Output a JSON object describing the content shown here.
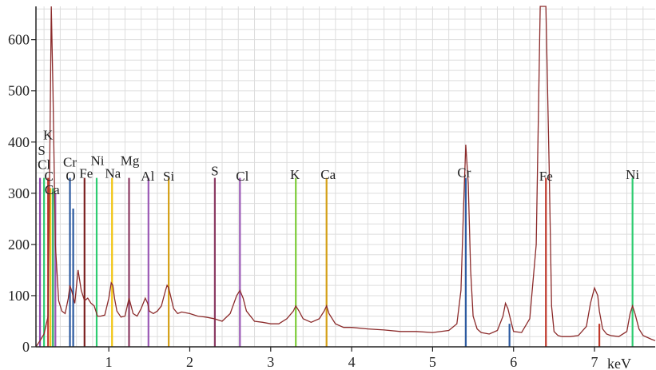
{
  "chart_data": {
    "type": "line",
    "title": "",
    "xlabel": "keV",
    "ylabel": "",
    "xlim": [
      0.1,
      7.75
    ],
    "ylim": [
      0,
      665
    ],
    "grid": true,
    "x_ticks": [
      1,
      2,
      3,
      4,
      5,
      6,
      7
    ],
    "x_tick_labels": [
      "1",
      "2",
      "3",
      "4",
      "5",
      "6",
      "7"
    ],
    "y_ticks": [
      0,
      100,
      200,
      300,
      400,
      500,
      600
    ],
    "y_tick_labels": [
      "0",
      "100",
      "200",
      "300",
      "400",
      "500",
      "600"
    ],
    "line_color": "#8b2a2a",
    "spectrum": {
      "x": [
        0.1,
        0.15,
        0.2,
        0.25,
        0.27,
        0.29,
        0.31,
        0.34,
        0.38,
        0.42,
        0.46,
        0.5,
        0.52,
        0.54,
        0.58,
        0.62,
        0.66,
        0.7,
        0.74,
        0.78,
        0.82,
        0.86,
        0.9,
        0.95,
        1.0,
        1.03,
        1.05,
        1.07,
        1.1,
        1.15,
        1.2,
        1.25,
        1.3,
        1.35,
        1.4,
        1.45,
        1.48,
        1.5,
        1.55,
        1.6,
        1.65,
        1.7,
        1.72,
        1.74,
        1.77,
        1.8,
        1.85,
        1.9,
        2.0,
        2.1,
        2.2,
        2.3,
        2.4,
        2.5,
        2.58,
        2.62,
        2.66,
        2.7,
        2.8,
        2.9,
        3.0,
        3.1,
        3.2,
        3.28,
        3.31,
        3.35,
        3.4,
        3.5,
        3.6,
        3.66,
        3.69,
        3.72,
        3.8,
        3.9,
        4.0,
        4.2,
        4.4,
        4.6,
        4.8,
        5.0,
        5.2,
        5.3,
        5.35,
        5.38,
        5.41,
        5.44,
        5.47,
        5.5,
        5.55,
        5.6,
        5.7,
        5.8,
        5.87,
        5.9,
        5.93,
        5.96,
        6.0,
        6.1,
        6.2,
        6.28,
        6.33,
        6.36,
        6.4,
        6.44,
        6.47,
        6.5,
        6.55,
        6.6,
        6.7,
        6.8,
        6.9,
        6.95,
        7.0,
        7.04,
        7.06,
        7.1,
        7.15,
        7.2,
        7.3,
        7.4,
        7.44,
        7.47,
        7.5,
        7.55,
        7.6,
        7.7,
        7.75
      ],
      "y": [
        0,
        12,
        25,
        60,
        350,
        665,
        500,
        200,
        90,
        70,
        65,
        95,
        120,
        110,
        85,
        150,
        110,
        90,
        95,
        85,
        80,
        60,
        60,
        62,
        95,
        125,
        120,
        95,
        70,
        58,
        60,
        95,
        65,
        60,
        75,
        95,
        85,
        70,
        65,
        70,
        80,
        110,
        120,
        115,
        95,
        75,
        65,
        68,
        65,
        60,
        58,
        55,
        50,
        65,
        100,
        110,
        95,
        70,
        50,
        48,
        45,
        45,
        55,
        70,
        80,
        70,
        55,
        48,
        55,
        70,
        80,
        65,
        45,
        38,
        38,
        35,
        33,
        30,
        30,
        28,
        32,
        45,
        110,
        260,
        395,
        320,
        150,
        60,
        35,
        28,
        25,
        32,
        60,
        85,
        75,
        55,
        30,
        28,
        55,
        200,
        665,
        665,
        665,
        350,
        80,
        30,
        22,
        20,
        20,
        22,
        40,
        85,
        115,
        100,
        70,
        35,
        25,
        22,
        20,
        30,
        65,
        80,
        65,
        35,
        22,
        15,
        12
      ]
    },
    "element_lines": [
      {
        "x": 0.15,
        "h": 330,
        "color": "#8e44ad"
      },
      {
        "x": 0.2,
        "h": 330,
        "color": "#2ecc71"
      },
      {
        "x": 0.25,
        "h": 330,
        "color": "#c0392b"
      },
      {
        "x": 0.28,
        "h": 310,
        "color": "#f1c40f"
      },
      {
        "x": 0.31,
        "h": 310,
        "color": "#27ae60"
      },
      {
        "x": 0.34,
        "h": 300,
        "color": "#9b59b6"
      },
      {
        "x": 0.52,
        "h": 330,
        "color": "#2c5aa0"
      },
      {
        "x": 0.56,
        "h": 270,
        "color": "#2c5aa0"
      },
      {
        "x": 0.7,
        "h": 330,
        "color": "#7b1f1f"
      },
      {
        "x": 0.85,
        "h": 330,
        "color": "#2ecc71"
      },
      {
        "x": 1.04,
        "h": 330,
        "color": "#f1c40f"
      },
      {
        "x": 1.25,
        "h": 330,
        "color": "#8b3a62"
      },
      {
        "x": 1.49,
        "h": 330,
        "color": "#9b59b6"
      },
      {
        "x": 1.74,
        "h": 330,
        "color": "#d4a017"
      },
      {
        "x": 2.31,
        "h": 330,
        "color": "#8b3a62"
      },
      {
        "x": 2.62,
        "h": 330,
        "color": "#9b59b6"
      },
      {
        "x": 3.31,
        "h": 330,
        "color": "#7dcc3a"
      },
      {
        "x": 3.69,
        "h": 330,
        "color": "#d4a017"
      },
      {
        "x": 5.41,
        "h": 330,
        "color": "#2c5aa0"
      },
      {
        "x": 5.95,
        "h": 45,
        "color": "#2c5aa0"
      },
      {
        "x": 6.4,
        "h": 330,
        "color": "#c0392b"
      },
      {
        "x": 7.06,
        "h": 45,
        "color": "#c0392b"
      },
      {
        "x": 7.47,
        "h": 330,
        "color": "#2ecc71"
      }
    ],
    "element_labels": [
      {
        "text": "K",
        "x": 0.25,
        "y": 405
      },
      {
        "text": "S",
        "x": 0.17,
        "y": 375
      },
      {
        "text": "Cl",
        "x": 0.2,
        "y": 347
      },
      {
        "text": "Cr",
        "x": 0.52,
        "y": 352
      },
      {
        "text": "Ni",
        "x": 0.86,
        "y": 355
      },
      {
        "text": "Mg",
        "x": 1.26,
        "y": 355
      },
      {
        "text": "C",
        "x": 0.26,
        "y": 325
      },
      {
        "text": "O",
        "x": 0.53,
        "y": 325
      },
      {
        "text": "Fe",
        "x": 0.72,
        "y": 330
      },
      {
        "text": "Na",
        "x": 1.05,
        "y": 330
      },
      {
        "text": "Al",
        "x": 1.48,
        "y": 325
      },
      {
        "text": "Si",
        "x": 1.74,
        "y": 325
      },
      {
        "text": "Ca",
        "x": 0.3,
        "y": 298
      },
      {
        "text": "S",
        "x": 2.31,
        "y": 335
      },
      {
        "text": "Cl",
        "x": 2.65,
        "y": 325
      },
      {
        "text": "K",
        "x": 3.3,
        "y": 328
      },
      {
        "text": "Ca",
        "x": 3.71,
        "y": 328
      },
      {
        "text": "Cr",
        "x": 5.39,
        "y": 332
      },
      {
        "text": "Fe",
        "x": 6.4,
        "y": 325
      },
      {
        "text": "Ni",
        "x": 7.47,
        "y": 328
      }
    ]
  }
}
